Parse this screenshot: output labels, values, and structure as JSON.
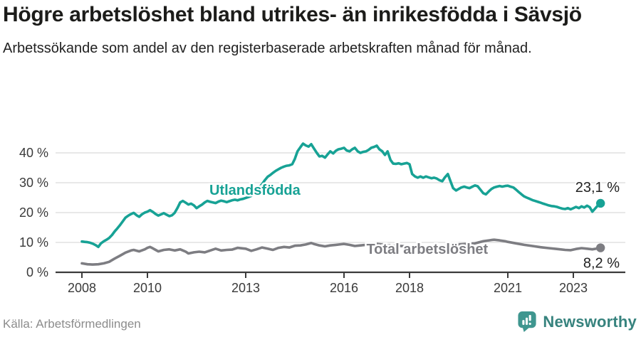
{
  "header": {
    "title": "Högre arbetslöshet bland utrikes- än inrikesfödda i Sävsjö",
    "subtitle": "Arbetssökande som andel av den registerbaserade arbetskraften månad för månad."
  },
  "footer": {
    "source": "Källa: Arbetsförmedlingen",
    "brand": "Newsworthy"
  },
  "colors": {
    "teal_series": "#17a295",
    "gray_series": "#7d7d82",
    "axis": "#3b3b3b",
    "grid": "#e0e0e0",
    "tick_text": "#3a3a3a",
    "value_text": "#222222",
    "brand_teal": "#3f968f",
    "brand_text": "#37837e"
  },
  "chart_data": {
    "type": "line",
    "title": "Högre arbetslöshet bland utrikes- än inrikesfödda i Sävsjö",
    "subtitle": "Arbetssökande som andel av den registerbaserade arbetskraften månad för månad.",
    "xlabel": "",
    "ylabel": "",
    "grid": true,
    "legend_position": "inline-labels",
    "xlim": [
      2007.2,
      2024.6
    ],
    "ylim": [
      0,
      45
    ],
    "x_ticks": [
      {
        "v": 2008,
        "label": "2008"
      },
      {
        "v": 2010,
        "label": "2010"
      },
      {
        "v": 2013,
        "label": "2013"
      },
      {
        "v": 2016,
        "label": "2016"
      },
      {
        "v": 2018,
        "label": "2018"
      },
      {
        "v": 2021,
        "label": "2021"
      },
      {
        "v": 2023,
        "label": "2023"
      }
    ],
    "y_ticks": [
      {
        "v": 0,
        "label": "0 %"
      },
      {
        "v": 10,
        "label": "10 %"
      },
      {
        "v": 20,
        "label": "20 %"
      },
      {
        "v": 30,
        "label": "30 %"
      },
      {
        "v": 40,
        "label": "40 %"
      }
    ],
    "series": [
      {
        "name": "Utlandsfödda",
        "color": "#17a295",
        "end_label": "23,1 %",
        "last_value": 23.1,
        "label_pos": {
          "x": 2013.28,
          "y": 27.6
        },
        "points": [
          [
            2008.0,
            10.3
          ],
          [
            2008.08,
            10.2
          ],
          [
            2008.17,
            10.1
          ],
          [
            2008.25,
            9.9
          ],
          [
            2008.33,
            9.6
          ],
          [
            2008.42,
            9.1
          ],
          [
            2008.5,
            8.5
          ],
          [
            2008.58,
            9.7
          ],
          [
            2008.67,
            10.4
          ],
          [
            2008.75,
            10.9
          ],
          [
            2008.83,
            11.5
          ],
          [
            2008.92,
            12.5
          ],
          [
            2009.0,
            13.7
          ],
          [
            2009.08,
            14.7
          ],
          [
            2009.17,
            15.9
          ],
          [
            2009.25,
            17.1
          ],
          [
            2009.33,
            18.3
          ],
          [
            2009.42,
            19.0
          ],
          [
            2009.5,
            19.5
          ],
          [
            2009.58,
            19.9
          ],
          [
            2009.67,
            19.1
          ],
          [
            2009.75,
            18.6
          ],
          [
            2009.83,
            19.4
          ],
          [
            2009.92,
            20.0
          ],
          [
            2010.0,
            20.3
          ],
          [
            2010.08,
            20.8
          ],
          [
            2010.17,
            20.2
          ],
          [
            2010.25,
            19.5
          ],
          [
            2010.33,
            19.0
          ],
          [
            2010.42,
            19.4
          ],
          [
            2010.5,
            19.8
          ],
          [
            2010.58,
            19.3
          ],
          [
            2010.67,
            18.8
          ],
          [
            2010.75,
            19.1
          ],
          [
            2010.83,
            19.9
          ],
          [
            2010.92,
            21.6
          ],
          [
            2011.0,
            23.4
          ],
          [
            2011.08,
            23.9
          ],
          [
            2011.17,
            23.3
          ],
          [
            2011.25,
            22.7
          ],
          [
            2011.33,
            23.0
          ],
          [
            2011.42,
            22.4
          ],
          [
            2011.5,
            21.5
          ],
          [
            2011.58,
            22.1
          ],
          [
            2011.67,
            22.7
          ],
          [
            2011.75,
            23.4
          ],
          [
            2011.83,
            23.9
          ],
          [
            2011.92,
            23.6
          ],
          [
            2012.0,
            23.4
          ],
          [
            2012.08,
            23.2
          ],
          [
            2012.17,
            23.7
          ],
          [
            2012.25,
            24.0
          ],
          [
            2012.33,
            23.8
          ],
          [
            2012.42,
            23.5
          ],
          [
            2012.5,
            23.8
          ],
          [
            2012.58,
            24.1
          ],
          [
            2012.67,
            24.3
          ],
          [
            2012.75,
            24.1
          ],
          [
            2012.83,
            24.4
          ],
          [
            2012.92,
            24.6
          ],
          [
            2013.0,
            24.9
          ],
          [
            2013.08,
            25.2
          ],
          [
            2013.17,
            25.6
          ],
          [
            2013.25,
            26.4
          ],
          [
            2013.33,
            27.5
          ],
          [
            2013.42,
            28.5
          ],
          [
            2013.5,
            29.5
          ],
          [
            2013.58,
            30.8
          ],
          [
            2013.67,
            32.0
          ],
          [
            2013.75,
            32.6
          ],
          [
            2013.83,
            33.3
          ],
          [
            2013.92,
            34.0
          ],
          [
            2014.0,
            34.5
          ],
          [
            2014.08,
            35.0
          ],
          [
            2014.17,
            35.4
          ],
          [
            2014.25,
            35.7
          ],
          [
            2014.33,
            35.8
          ],
          [
            2014.42,
            36.2
          ],
          [
            2014.5,
            38.0
          ],
          [
            2014.58,
            40.5
          ],
          [
            2014.67,
            41.9
          ],
          [
            2014.75,
            43.1
          ],
          [
            2014.83,
            42.5
          ],
          [
            2014.92,
            42.1
          ],
          [
            2015.0,
            42.9
          ],
          [
            2015.08,
            41.5
          ],
          [
            2015.17,
            40.0
          ],
          [
            2015.25,
            38.8
          ],
          [
            2015.33,
            39.0
          ],
          [
            2015.42,
            38.4
          ],
          [
            2015.5,
            39.5
          ],
          [
            2015.58,
            40.5
          ],
          [
            2015.67,
            39.8
          ],
          [
            2015.75,
            40.7
          ],
          [
            2015.83,
            41.2
          ],
          [
            2015.92,
            41.4
          ],
          [
            2016.0,
            41.7
          ],
          [
            2016.08,
            40.8
          ],
          [
            2016.17,
            40.5
          ],
          [
            2016.25,
            41.2
          ],
          [
            2016.33,
            41.7
          ],
          [
            2016.42,
            40.5
          ],
          [
            2016.5,
            40.0
          ],
          [
            2016.58,
            40.3
          ],
          [
            2016.67,
            40.5
          ],
          [
            2016.75,
            41.0
          ],
          [
            2016.83,
            41.7
          ],
          [
            2016.92,
            42.0
          ],
          [
            2017.0,
            42.4
          ],
          [
            2017.08,
            41.2
          ],
          [
            2017.17,
            40.5
          ],
          [
            2017.25,
            39.3
          ],
          [
            2017.33,
            40.5
          ],
          [
            2017.42,
            37.6
          ],
          [
            2017.5,
            36.4
          ],
          [
            2017.58,
            36.3
          ],
          [
            2017.67,
            36.5
          ],
          [
            2017.75,
            36.2
          ],
          [
            2017.83,
            36.4
          ],
          [
            2017.92,
            36.6
          ],
          [
            2018.0,
            36.2
          ],
          [
            2018.08,
            32.9
          ],
          [
            2018.17,
            32.1
          ],
          [
            2018.25,
            31.7
          ],
          [
            2018.33,
            32.1
          ],
          [
            2018.42,
            31.7
          ],
          [
            2018.5,
            32.1
          ],
          [
            2018.58,
            31.8
          ],
          [
            2018.67,
            31.5
          ],
          [
            2018.75,
            31.7
          ],
          [
            2018.83,
            31.4
          ],
          [
            2018.92,
            30.8
          ],
          [
            2019.0,
            30.5
          ],
          [
            2019.08,
            31.8
          ],
          [
            2019.17,
            32.9
          ],
          [
            2019.25,
            30.5
          ],
          [
            2019.33,
            28.2
          ],
          [
            2019.42,
            27.4
          ],
          [
            2019.5,
            27.9
          ],
          [
            2019.58,
            28.4
          ],
          [
            2019.67,
            28.7
          ],
          [
            2019.75,
            28.4
          ],
          [
            2019.83,
            28.2
          ],
          [
            2019.92,
            28.7
          ],
          [
            2020.0,
            29.1
          ],
          [
            2020.08,
            28.8
          ],
          [
            2020.17,
            27.6
          ],
          [
            2020.25,
            26.5
          ],
          [
            2020.33,
            26.1
          ],
          [
            2020.42,
            27.1
          ],
          [
            2020.5,
            27.9
          ],
          [
            2020.58,
            28.4
          ],
          [
            2020.67,
            28.7
          ],
          [
            2020.75,
            28.9
          ],
          [
            2020.83,
            28.7
          ],
          [
            2020.92,
            28.9
          ],
          [
            2021.0,
            29.0
          ],
          [
            2021.08,
            28.7
          ],
          [
            2021.17,
            28.4
          ],
          [
            2021.25,
            27.7
          ],
          [
            2021.33,
            26.9
          ],
          [
            2021.42,
            26.1
          ],
          [
            2021.5,
            25.4
          ],
          [
            2021.58,
            25.0
          ],
          [
            2021.67,
            24.6
          ],
          [
            2021.75,
            24.2
          ],
          [
            2021.83,
            23.9
          ],
          [
            2021.92,
            23.6
          ],
          [
            2022.0,
            23.3
          ],
          [
            2022.08,
            23.0
          ],
          [
            2022.17,
            22.7
          ],
          [
            2022.25,
            22.4
          ],
          [
            2022.33,
            22.2
          ],
          [
            2022.42,
            22.1
          ],
          [
            2022.5,
            21.9
          ],
          [
            2022.58,
            21.6
          ],
          [
            2022.67,
            21.3
          ],
          [
            2022.75,
            21.2
          ],
          [
            2022.83,
            21.5
          ],
          [
            2022.92,
            21.1
          ],
          [
            2023.0,
            21.5
          ],
          [
            2023.08,
            21.9
          ],
          [
            2023.17,
            21.5
          ],
          [
            2023.25,
            22.1
          ],
          [
            2023.33,
            21.7
          ],
          [
            2023.42,
            22.3
          ],
          [
            2023.5,
            21.8
          ],
          [
            2023.58,
            20.3
          ],
          [
            2023.67,
            21.4
          ],
          [
            2023.75,
            22.4
          ],
          [
            2023.83,
            23.1
          ]
        ]
      },
      {
        "name": "Total arbetslöshet",
        "color": "#7d7d82",
        "end_label": "8,2 %",
        "last_value": 8.2,
        "label_pos": {
          "x": 2018.54,
          "y": 7.85
        },
        "points": [
          [
            2008.0,
            3.0
          ],
          [
            2008.17,
            2.7
          ],
          [
            2008.33,
            2.6
          ],
          [
            2008.5,
            2.7
          ],
          [
            2008.67,
            3.0
          ],
          [
            2008.83,
            3.5
          ],
          [
            2009.0,
            4.6
          ],
          [
            2009.17,
            5.6
          ],
          [
            2009.33,
            6.6
          ],
          [
            2009.5,
            7.3
          ],
          [
            2009.58,
            7.5
          ],
          [
            2009.75,
            7.0
          ],
          [
            2009.92,
            7.7
          ],
          [
            2010.0,
            8.2
          ],
          [
            2010.08,
            8.5
          ],
          [
            2010.17,
            8.0
          ],
          [
            2010.25,
            7.5
          ],
          [
            2010.33,
            7.0
          ],
          [
            2010.5,
            7.5
          ],
          [
            2010.67,
            7.7
          ],
          [
            2010.83,
            7.3
          ],
          [
            2011.0,
            7.7
          ],
          [
            2011.17,
            6.9
          ],
          [
            2011.25,
            6.3
          ],
          [
            2011.42,
            6.7
          ],
          [
            2011.58,
            6.9
          ],
          [
            2011.75,
            6.7
          ],
          [
            2011.92,
            7.3
          ],
          [
            2012.08,
            7.9
          ],
          [
            2012.25,
            7.3
          ],
          [
            2012.42,
            7.5
          ],
          [
            2012.58,
            7.6
          ],
          [
            2012.75,
            8.2
          ],
          [
            2012.92,
            8.0
          ],
          [
            2013.0,
            7.9
          ],
          [
            2013.17,
            7.2
          ],
          [
            2013.33,
            7.7
          ],
          [
            2013.5,
            8.3
          ],
          [
            2013.67,
            7.9
          ],
          [
            2013.83,
            7.5
          ],
          [
            2014.0,
            8.2
          ],
          [
            2014.17,
            8.5
          ],
          [
            2014.33,
            8.3
          ],
          [
            2014.5,
            8.9
          ],
          [
            2014.67,
            9.0
          ],
          [
            2014.83,
            9.3
          ],
          [
            2015.0,
            9.8
          ],
          [
            2015.08,
            9.5
          ],
          [
            2015.25,
            9.0
          ],
          [
            2015.42,
            8.7
          ],
          [
            2015.58,
            9.0
          ],
          [
            2015.75,
            9.2
          ],
          [
            2015.92,
            9.4
          ],
          [
            2016.0,
            9.5
          ],
          [
            2016.17,
            9.2
          ],
          [
            2016.33,
            8.8
          ],
          [
            2016.5,
            9.0
          ],
          [
            2016.67,
            9.2
          ],
          [
            2016.83,
            9.4
          ],
          [
            2017.0,
            9.5
          ],
          [
            2017.25,
            9.2
          ],
          [
            2017.5,
            8.9
          ],
          [
            2017.75,
            8.8
          ],
          [
            2018.0,
            8.6
          ],
          [
            2018.25,
            8.3
          ],
          [
            2018.5,
            8.2
          ],
          [
            2018.75,
            8.4
          ],
          [
            2019.0,
            8.7
          ],
          [
            2019.25,
            9.0
          ],
          [
            2019.5,
            9.3
          ],
          [
            2019.75,
            9.5
          ],
          [
            2020.0,
            9.7
          ],
          [
            2020.25,
            10.4
          ],
          [
            2020.5,
            10.8
          ],
          [
            2020.58,
            10.9
          ],
          [
            2020.75,
            10.7
          ],
          [
            2020.92,
            10.4
          ],
          [
            2021.0,
            10.2
          ],
          [
            2021.25,
            9.7
          ],
          [
            2021.5,
            9.2
          ],
          [
            2021.75,
            8.8
          ],
          [
            2022.0,
            8.4
          ],
          [
            2022.25,
            8.1
          ],
          [
            2022.5,
            7.8
          ],
          [
            2022.75,
            7.5
          ],
          [
            2022.92,
            7.4
          ],
          [
            2023.08,
            7.8
          ],
          [
            2023.25,
            8.1
          ],
          [
            2023.42,
            7.9
          ],
          [
            2023.58,
            7.7
          ],
          [
            2023.75,
            8.0
          ],
          [
            2023.83,
            8.2
          ]
        ]
      }
    ]
  }
}
